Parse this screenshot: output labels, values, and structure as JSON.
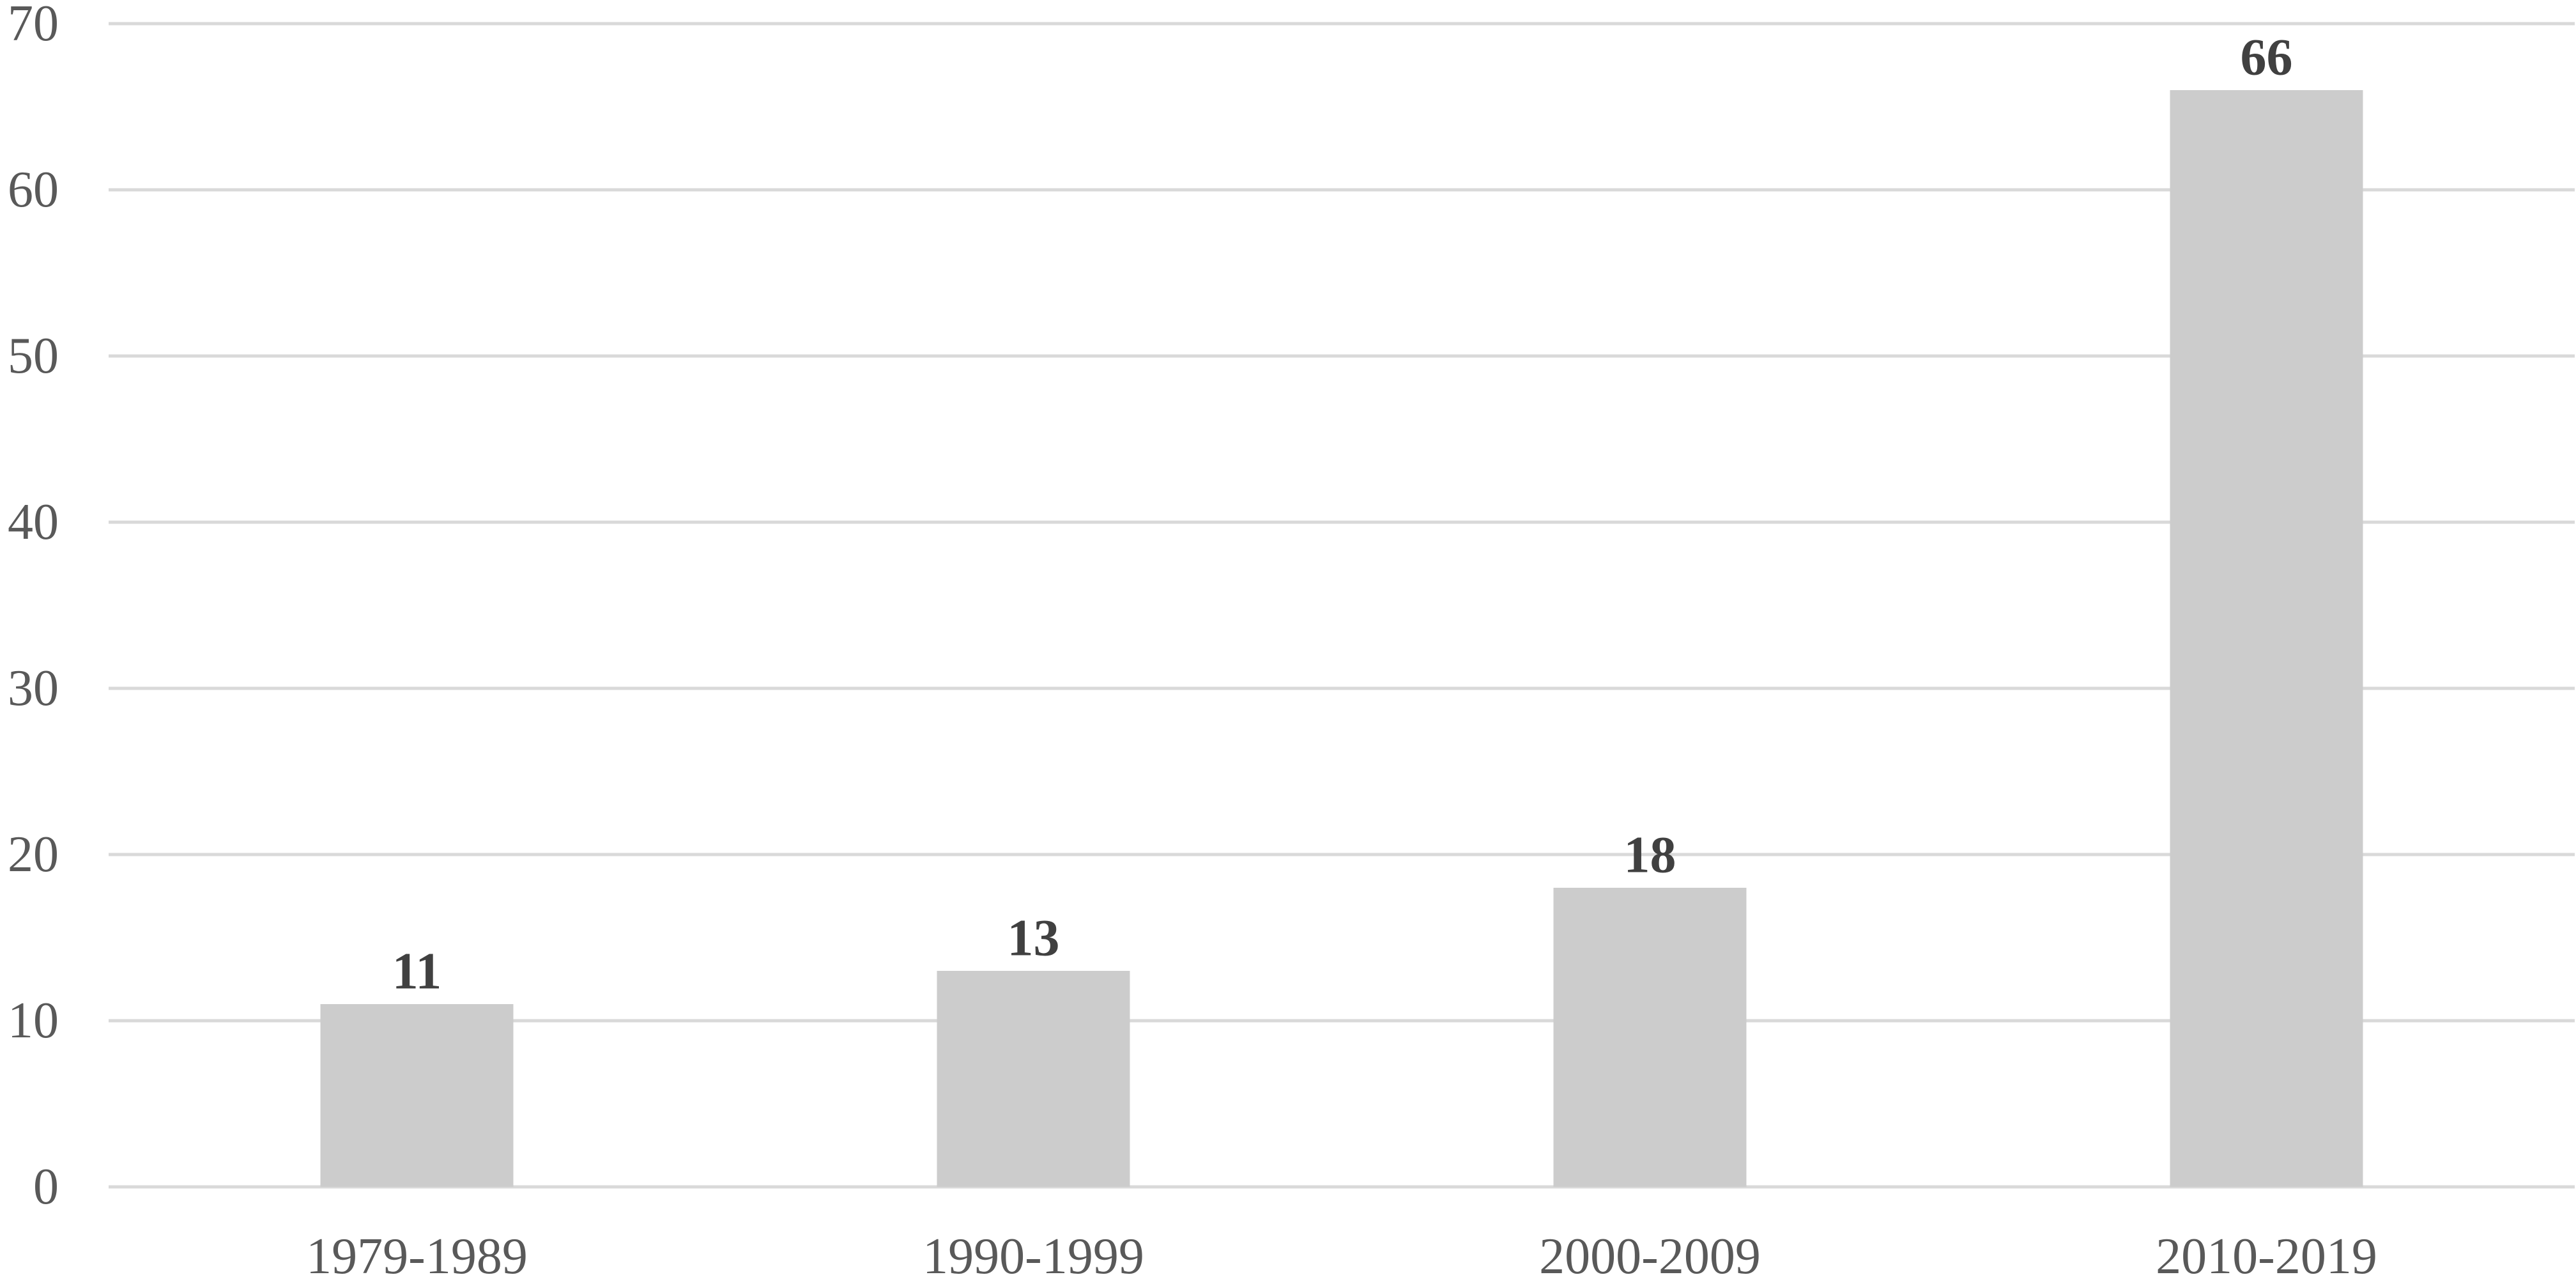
{
  "chart_data": {
    "type": "bar",
    "categories": [
      "1979-1989",
      "1990-1999",
      "2000-2009",
      "2010-2019"
    ],
    "values": [
      11,
      13,
      18,
      66
    ],
    "data_labels": [
      "11",
      "13",
      "18",
      "66"
    ],
    "title": "",
    "xlabel": "",
    "ylabel": "",
    "ylim": [
      0,
      70
    ],
    "y_ticks": [
      0,
      10,
      20,
      30,
      40,
      50,
      60,
      70
    ],
    "y_tick_labels": [
      "0",
      "10",
      "20",
      "30",
      "40",
      "50",
      "60",
      "70"
    ],
    "grid": true,
    "legend": "none",
    "colors": {
      "bar": "#cccccc",
      "grid": "#d9d9d9",
      "tick_text": "#595959",
      "data_label_text": "#404040"
    }
  }
}
